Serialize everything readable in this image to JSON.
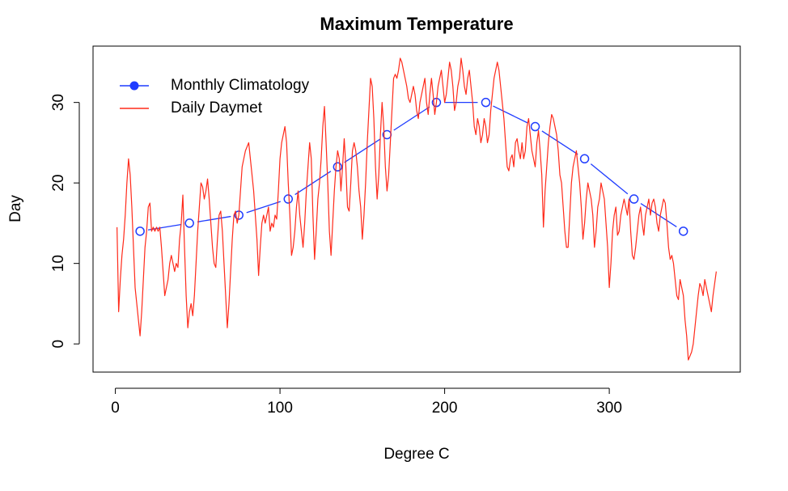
{
  "chart_data": {
    "type": "line",
    "title": "Maximum Temperature",
    "x_label": "Degree C",
    "y_label": "Day",
    "xlim": [
      -13.56,
      379.56
    ],
    "ylim": [
      -3.5,
      37
    ],
    "xticks": [
      0,
      100,
      200,
      300
    ],
    "yticks": [
      0,
      10,
      20,
      30
    ],
    "grid": false,
    "legend": "topleft",
    "series": [
      {
        "name": "Monthly Climatology",
        "color": "#1f3cff",
        "marker": "circle",
        "x": [
          15,
          45,
          75,
          105,
          135,
          165,
          195,
          225,
          255,
          285,
          315,
          345
        ],
        "values": [
          14,
          15,
          16,
          18,
          22,
          26,
          30,
          30,
          27,
          23,
          18,
          14
        ]
      },
      {
        "name": "Daily Daymet",
        "color": "#ff2a1a",
        "x": [
          1,
          2,
          3,
          4,
          5,
          6,
          7,
          8,
          9,
          10,
          11,
          12,
          13,
          14,
          15,
          16,
          17,
          18,
          19,
          20,
          21,
          22,
          23,
          24,
          25,
          26,
          27,
          28,
          29,
          30,
          31,
          32,
          33,
          34,
          35,
          36,
          37,
          38,
          39,
          40,
          41,
          42,
          43,
          44,
          45,
          46,
          47,
          48,
          49,
          50,
          51,
          52,
          53,
          54,
          55,
          56,
          57,
          58,
          59,
          60,
          61,
          62,
          63,
          64,
          65,
          66,
          67,
          68,
          69,
          70,
          71,
          72,
          73,
          74,
          75,
          76,
          77,
          78,
          79,
          80,
          81,
          82,
          83,
          84,
          85,
          86,
          87,
          88,
          89,
          90,
          91,
          92,
          93,
          94,
          95,
          96,
          97,
          98,
          99,
          100,
          101,
          102,
          103,
          104,
          105,
          106,
          107,
          108,
          109,
          110,
          111,
          112,
          113,
          114,
          115,
          116,
          117,
          118,
          119,
          120,
          121,
          122,
          123,
          124,
          125,
          126,
          127,
          128,
          129,
          130,
          131,
          132,
          133,
          134,
          135,
          136,
          137,
          138,
          139,
          140,
          141,
          142,
          143,
          144,
          145,
          146,
          147,
          148,
          149,
          150,
          151,
          152,
          153,
          154,
          155,
          156,
          157,
          158,
          159,
          160,
          161,
          162,
          163,
          164,
          165,
          166,
          167,
          168,
          169,
          170,
          171,
          172,
          173,
          174,
          175,
          176,
          177,
          178,
          179,
          180,
          181,
          182,
          183,
          184,
          185,
          186,
          187,
          188,
          189,
          190,
          191,
          192,
          193,
          194,
          195,
          196,
          197,
          198,
          199,
          200,
          201,
          202,
          203,
          204,
          205,
          206,
          207,
          208,
          209,
          210,
          211,
          212,
          213,
          214,
          215,
          216,
          217,
          218,
          219,
          220,
          221,
          222,
          223,
          224,
          225,
          226,
          227,
          228,
          229,
          230,
          231,
          232,
          233,
          234,
          235,
          236,
          237,
          238,
          239,
          240,
          241,
          242,
          243,
          244,
          245,
          246,
          247,
          248,
          249,
          250,
          251,
          252,
          253,
          254,
          255,
          256,
          257,
          258,
          259,
          260,
          261,
          262,
          263,
          264,
          265,
          266,
          267,
          268,
          269,
          270,
          271,
          272,
          273,
          274,
          275,
          276,
          277,
          278,
          279,
          280,
          281,
          282,
          283,
          284,
          285,
          286,
          287,
          288,
          289,
          290,
          291,
          292,
          293,
          294,
          295,
          296,
          297,
          298,
          299,
          300,
          301,
          302,
          303,
          304,
          305,
          306,
          307,
          308,
          309,
          310,
          311,
          312,
          313,
          314,
          315,
          316,
          317,
          318,
          319,
          320,
          321,
          322,
          323,
          324,
          325,
          326,
          327,
          328,
          329,
          330,
          331,
          332,
          333,
          334,
          335,
          336,
          337,
          338,
          339,
          340,
          341,
          342,
          343,
          344,
          345,
          346,
          347,
          348,
          349,
          350,
          351,
          352,
          353,
          354,
          355,
          356,
          357,
          358,
          359,
          360,
          361,
          362,
          363,
          364,
          365
        ],
        "values": [
          14.5,
          4,
          8,
          11,
          13,
          16,
          20,
          23,
          21,
          17,
          12,
          7,
          5,
          3,
          1,
          4,
          8,
          12,
          14,
          17,
          17.5,
          14,
          14.5,
          14,
          14.5,
          14,
          14.5,
          12,
          9,
          6,
          7,
          8,
          10,
          11,
          10,
          9,
          10,
          9.5,
          13,
          15,
          18.5,
          12,
          6,
          2,
          4,
          5,
          3.5,
          6,
          10,
          14,
          17,
          20,
          19.5,
          18,
          19,
          20.5,
          18,
          15,
          12,
          10,
          9.5,
          13,
          16,
          16.5,
          14,
          10,
          6,
          2,
          5,
          9,
          13,
          16,
          16.5,
          15,
          16,
          19,
          22,
          23,
          24,
          24.5,
          25,
          23,
          21,
          19,
          16,
          13,
          8.5,
          12,
          15,
          16,
          15,
          16,
          17,
          14,
          15,
          14.5,
          16,
          15.5,
          19,
          23,
          25,
          26,
          27,
          25,
          20,
          16,
          11,
          12,
          14,
          17,
          19,
          16,
          14,
          12,
          15,
          19,
          22,
          25,
          23,
          16,
          10.5,
          14,
          18,
          20,
          23,
          27,
          29.5,
          25,
          20,
          14,
          11,
          15,
          19,
          22,
          24,
          23,
          19,
          22,
          25.5,
          22,
          17,
          16.5,
          20,
          24,
          25,
          24,
          22,
          19,
          17,
          13,
          16,
          20,
          25,
          29,
          33,
          32,
          28,
          22,
          18,
          21,
          26,
          30,
          27,
          22,
          19,
          21,
          25,
          29,
          33,
          33.5,
          33,
          34,
          35.5,
          35,
          34,
          33,
          32,
          30.5,
          30,
          31,
          32,
          31,
          29,
          28,
          30,
          31,
          32,
          33,
          30,
          28.5,
          31,
          33,
          31,
          28.5,
          30,
          32,
          33,
          34,
          32,
          30,
          31,
          33,
          35,
          34,
          32,
          29,
          30,
          32,
          33,
          35.5,
          34,
          32,
          31,
          33,
          34,
          32,
          30,
          27,
          26,
          28,
          27,
          25,
          26,
          28,
          27,
          25,
          26,
          29,
          31,
          33,
          34,
          35,
          34,
          32,
          30,
          28,
          25,
          22,
          21.5,
          23,
          23.5,
          22,
          25,
          25.5,
          24,
          23,
          25,
          23,
          24,
          27,
          28,
          26,
          24,
          23,
          22,
          25,
          26.5,
          24,
          21,
          14.5,
          19,
          22,
          25,
          27,
          28.5,
          28,
          27,
          26,
          24,
          21,
          20,
          17,
          14,
          12,
          12,
          16,
          20,
          22,
          23,
          24,
          22,
          20,
          17,
          13,
          15,
          18,
          20,
          19,
          18,
          16,
          12,
          14,
          17,
          18,
          20,
          19,
          18,
          15,
          12,
          7,
          10,
          14,
          16,
          17,
          13.5,
          14,
          16,
          17,
          18,
          17,
          16,
          18,
          14,
          11,
          10.5,
          12,
          14,
          16,
          17,
          15,
          13.5,
          16,
          17,
          18,
          16,
          17.5,
          18,
          17,
          15,
          14,
          16,
          17,
          18,
          17.5,
          15,
          12,
          10.5,
          11,
          10,
          8,
          6,
          5.5,
          8,
          7,
          6,
          3,
          1,
          -2,
          -1.5,
          -1,
          0,
          2,
          4,
          6,
          7.5,
          7,
          6,
          8,
          7,
          6,
          5,
          4,
          6,
          7.5,
          9
        ]
      }
    ]
  }
}
